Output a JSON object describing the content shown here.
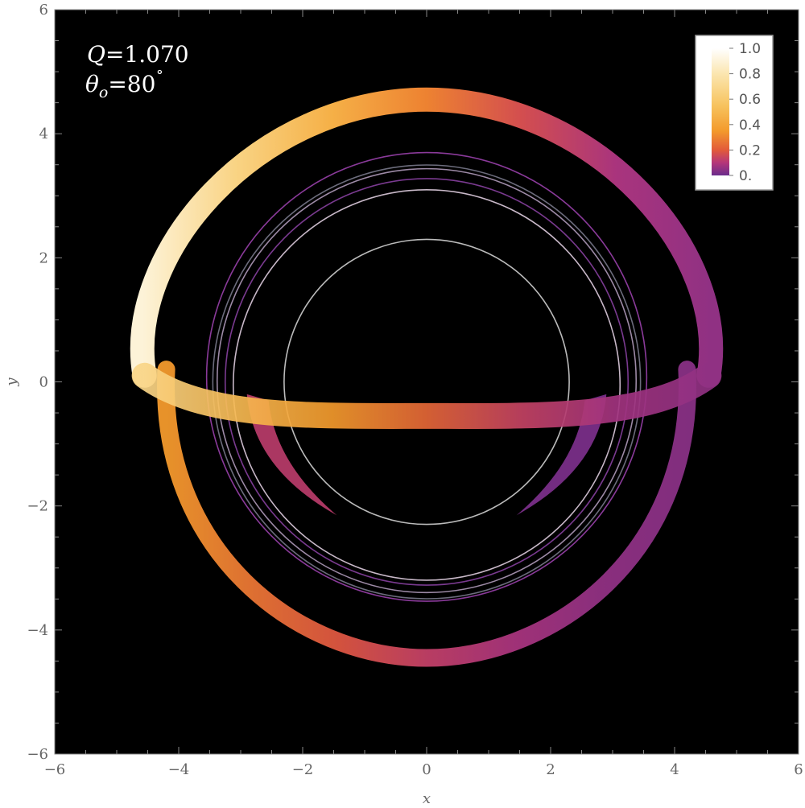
{
  "chart_data": {
    "type": "heatmap",
    "xlabel": "x",
    "ylabel": "y",
    "xlim": [
      -6,
      6
    ],
    "ylim": [
      -6,
      6
    ],
    "x_ticks": [
      -6,
      -4,
      -2,
      0,
      2,
      4,
      6
    ],
    "y_ticks": [
      -6,
      -4,
      -2,
      0,
      2,
      4,
      6
    ],
    "x_tick_labels": [
      "−6",
      "−4",
      "−2",
      "0",
      "2",
      "4",
      "6"
    ],
    "y_tick_labels": [
      "−6",
      "−4",
      "−2",
      "0",
      "2",
      "4",
      "6"
    ],
    "annotations": {
      "q_label": "Q",
      "q_value": "=1.070",
      "theta_symbol": "θ",
      "theta_subscript": "o",
      "theta_value": "=80",
      "theta_unit": "˚"
    },
    "legend": {
      "placement": "top-right",
      "labels": [
        "1.0",
        "0.8",
        "0.6",
        "0.4",
        "0.2",
        "0."
      ],
      "values": [
        1.0,
        0.8,
        0.6,
        0.4,
        0.2,
        0.0
      ],
      "colormap_stops": [
        {
          "v": 0.0,
          "color": "#6a2c8c"
        },
        {
          "v": 0.1,
          "color": "#b5367a"
        },
        {
          "v": 0.2,
          "color": "#e25a3a"
        },
        {
          "v": 0.35,
          "color": "#f39a2c"
        },
        {
          "v": 0.55,
          "color": "#f7c35e"
        },
        {
          "v": 0.8,
          "color": "#fbe6b0"
        },
        {
          "v": 1.0,
          "color": "#ffffff"
        }
      ]
    },
    "background_color": "#000000",
    "shadow_circle": {
      "cx": 0,
      "cy": 0,
      "r": 2.3,
      "color": "#bbbbbb"
    },
    "photon_rings": [
      {
        "cy": 0.08,
        "rx": 3.55,
        "ry": 3.62,
        "color": "#8a3a9a"
      },
      {
        "cy": 0.02,
        "rx": 3.38,
        "ry": 3.42,
        "color": "#9d8aa6"
      },
      {
        "cy": 0.0,
        "rx": 3.25,
        "ry": 3.28,
        "color": "#7a3a90"
      },
      {
        "cy": -0.05,
        "rx": 3.12,
        "ry": 3.15,
        "color": "#c8b8c8"
      },
      {
        "cy": 0.0,
        "rx": 3.45,
        "ry": 3.5,
        "color": "#6c6c7c"
      }
    ],
    "primary_image": {
      "upper_arc_top_y": 4.55,
      "band_center_y": -0.55,
      "extent_x": [
        -4.75,
        4.75
      ],
      "brightness_left": 0.9,
      "brightness_right": 0.05
    },
    "secondary_image": {
      "bottom_y": -4.45,
      "extent_x": [
        -4.3,
        4.3
      ],
      "brightness_left": 0.35,
      "brightness_right": 0.04
    }
  }
}
